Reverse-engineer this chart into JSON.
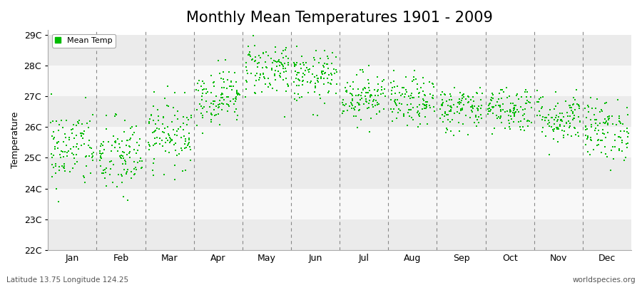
{
  "title": "Monthly Mean Temperatures 1901 - 2009",
  "ylabel": "Temperature",
  "xlabel_bottom": "Latitude 13.75 Longitude 124.25",
  "watermark": "worldspecies.org",
  "months": [
    "Jan",
    "Feb",
    "Mar",
    "Apr",
    "May",
    "Jun",
    "Jul",
    "Aug",
    "Sep",
    "Oct",
    "Nov",
    "Dec"
  ],
  "ylim": [
    22,
    29
  ],
  "yticks": [
    22,
    23,
    24,
    25,
    26,
    27,
    28,
    29
  ],
  "ytick_labels": [
    "22C",
    "23C",
    "24C",
    "25C",
    "26C",
    "27C",
    "28C",
    "29C"
  ],
  "dot_color": "#00BB00",
  "dot_size": 3,
  "background_color": "#ffffff",
  "legend_label": "Mean Temp",
  "title_fontsize": 15,
  "n_years": 109,
  "month_means": [
    25.3,
    25.0,
    25.8,
    27.0,
    27.9,
    27.6,
    27.0,
    26.8,
    26.6,
    26.6,
    26.3,
    25.9
  ],
  "month_stds": [
    0.65,
    0.65,
    0.55,
    0.45,
    0.45,
    0.42,
    0.4,
    0.4,
    0.38,
    0.38,
    0.42,
    0.5
  ],
  "seed": 42,
  "band_colors": [
    "#f0f0f0",
    "#ffffff",
    "#f0f0f0",
    "#ffffff",
    "#f0f0f0",
    "#ffffff",
    "#f0f0f0",
    "#ffffff"
  ]
}
